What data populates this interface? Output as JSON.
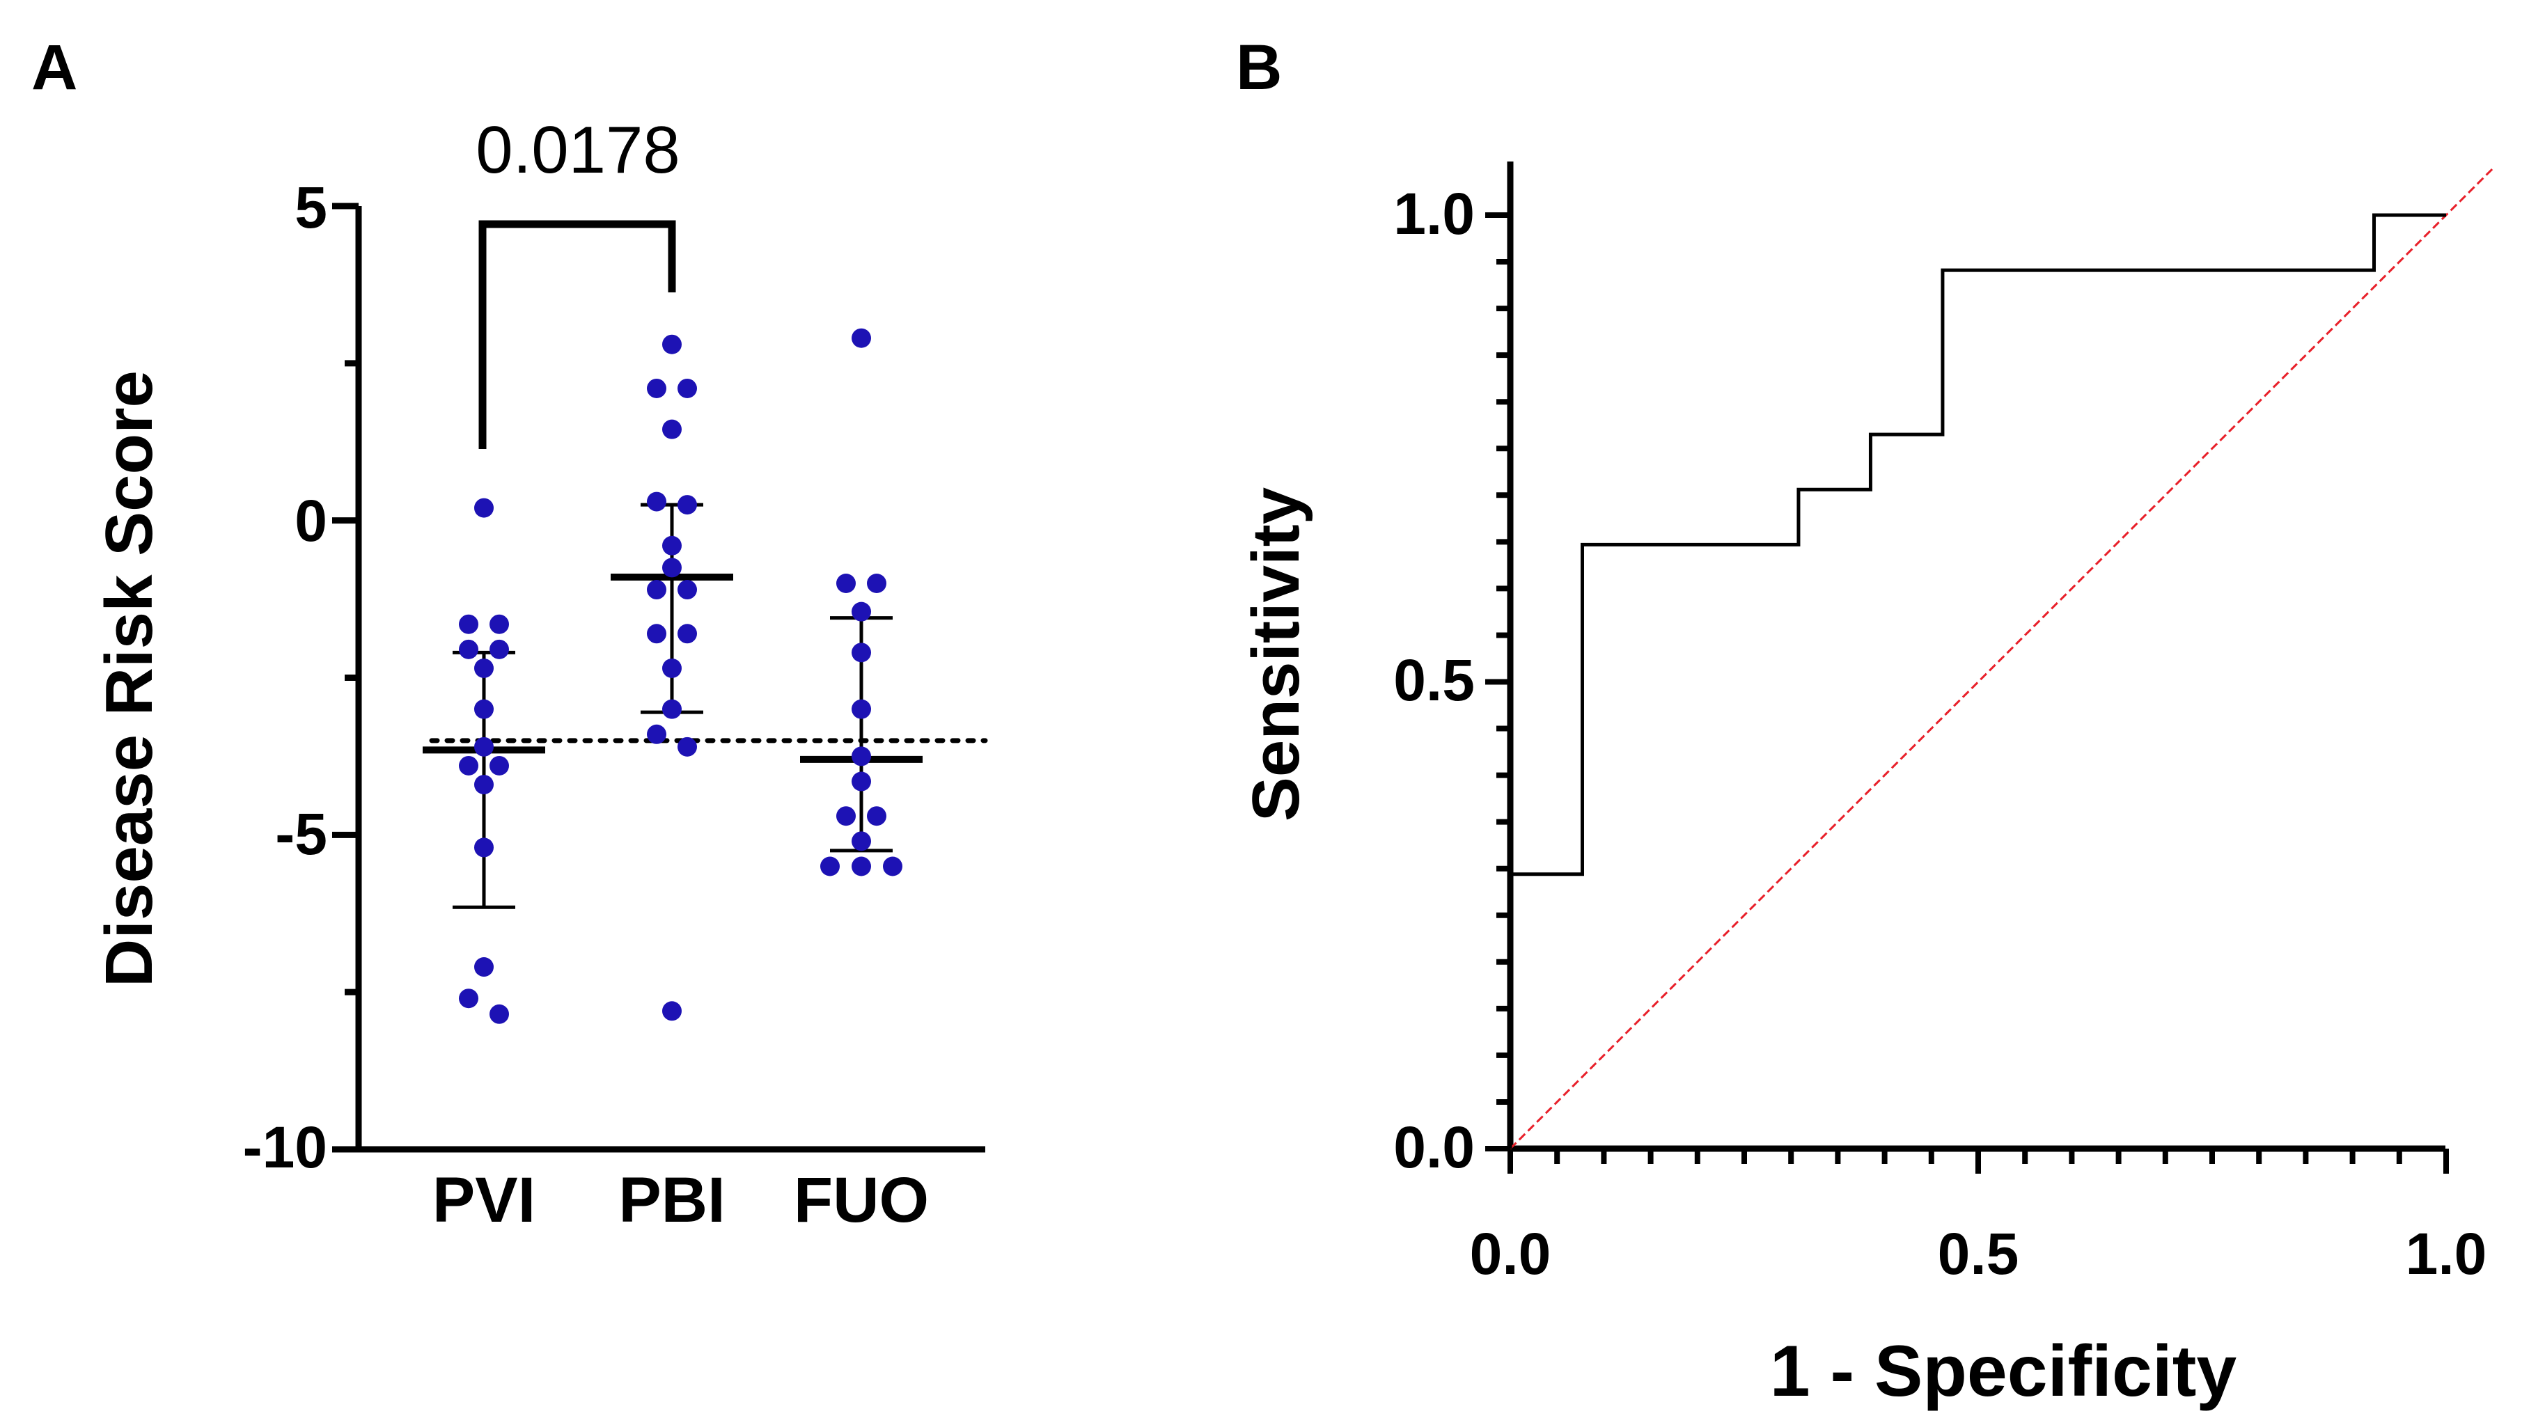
{
  "chart_data": [
    {
      "panel_label": "A",
      "type": "scatter",
      "ylabel": "Disease Risk Score",
      "ylim": [
        -10,
        5
      ],
      "yticks": [
        5,
        0,
        -5,
        -10
      ],
      "yticklabels": [
        "5",
        "0",
        "-5",
        "-10"
      ],
      "categories": [
        "PVI",
        "PBI",
        "FUO"
      ],
      "threshold": -3.5,
      "comparison": {
        "groups": [
          "PVI",
          "PBI"
        ],
        "p_value": "0.0178"
      },
      "groups": [
        {
          "name": "PVI",
          "points": [
            0.2,
            -1.65,
            -1.65,
            -2.05,
            -2.05,
            -2.35,
            -3.0,
            -3.6,
            -3.9,
            -3.9,
            -4.2,
            -5.2,
            -7.1,
            -7.6,
            -7.85
          ],
          "mean": -3.65,
          "sd_upper": -2.1,
          "sd_lower": -6.15
        },
        {
          "name": "PBI",
          "points": [
            2.8,
            2.1,
            2.1,
            1.45,
            0.3,
            0.25,
            -0.4,
            -0.75,
            -1.1,
            -1.1,
            -1.8,
            -1.8,
            -2.35,
            -3.0,
            -3.4,
            -3.6,
            -7.8
          ],
          "mean": -0.9,
          "sd_upper": 0.25,
          "sd_lower": -3.05
        },
        {
          "name": "FUO",
          "points": [
            2.9,
            -1.0,
            -1.0,
            -1.45,
            -2.1,
            -3.0,
            -3.75,
            -4.15,
            -4.7,
            -4.7,
            -5.1,
            -5.5,
            -5.5,
            -5.5
          ],
          "mean": -3.8,
          "sd_upper": -1.55,
          "sd_lower": -5.25
        }
      ]
    },
    {
      "panel_label": "B",
      "type": "line",
      "xlabel": "1 - Specificity",
      "ylabel": "Sensitivity",
      "xlim": [
        0,
        1
      ],
      "ylim": [
        0,
        1
      ],
      "xticklabels": [
        "0.0",
        "0.5",
        "1.0"
      ],
      "yticklabels": [
        "0.0",
        "0.5",
        "1.0"
      ],
      "roc": {
        "x": [
          0,
          0,
          0.077,
          0.077,
          0.308,
          0.308,
          0.385,
          0.385,
          0.462,
          0.462,
          0.923,
          0.923,
          1.0
        ],
        "y": [
          0,
          0.294,
          0.294,
          0.647,
          0.647,
          0.706,
          0.706,
          0.765,
          0.765,
          0.941,
          0.941,
          1.0,
          1.0
        ]
      },
      "reference_line": {
        "x": [
          0,
          1.05
        ],
        "y": [
          0,
          1.05
        ],
        "color": "#e8202a"
      }
    }
  ],
  "colors": {
    "points": "#1d12b4",
    "ink": "#000000",
    "reference": "#e8202a"
  }
}
